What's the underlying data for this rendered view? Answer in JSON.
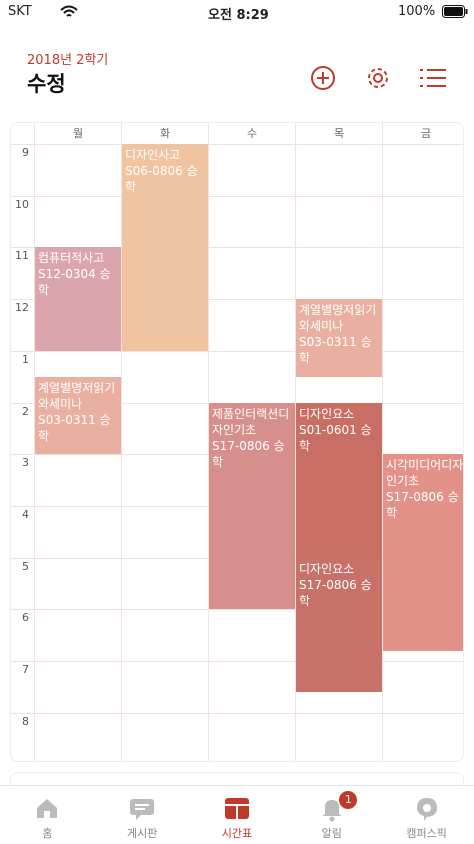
{
  "status_bar": {
    "carrier": "SKT",
    "time": "오전 8:29",
    "battery": "100%"
  },
  "header": {
    "semester": "2018년 2학기",
    "title": "수정"
  },
  "timetable": {
    "days": [
      "월",
      "화",
      "수",
      "목",
      "금"
    ],
    "hours": [
      {
        "value": 9,
        "label": "9"
      },
      {
        "value": 10,
        "label": "10"
      },
      {
        "value": 11,
        "label": "11"
      },
      {
        "value": 12,
        "label": "12"
      },
      {
        "value": 13,
        "label": "1"
      },
      {
        "value": 14,
        "label": "2"
      },
      {
        "value": 15,
        "label": "3"
      },
      {
        "value": 16,
        "label": "4"
      },
      {
        "value": 17,
        "label": "5"
      },
      {
        "value": 18,
        "label": "6"
      },
      {
        "value": 19,
        "label": "7"
      },
      {
        "value": 20,
        "label": "8"
      }
    ],
    "courses": [
      {
        "name": "디자인사고",
        "room": "S06-0806 승학",
        "day": 1,
        "start": 9,
        "end": 13,
        "color": "#f0c4a0"
      },
      {
        "name": "컴퓨터적사고",
        "room": "S12-0304 승학",
        "day": 0,
        "start": 11,
        "end": 13,
        "color": "#dba5ae"
      },
      {
        "name": "계열별명저읽기와세미나",
        "room": "S03-0311 승학",
        "day": 3,
        "start": 12,
        "end": 13.5,
        "color": "#e9b0a2"
      },
      {
        "name": "계열별명저읽기와세미나",
        "room": "S03-0311 승학",
        "day": 0,
        "start": 13.5,
        "end": 15,
        "color": "#e9b0a2"
      },
      {
        "name": "제품인터랙션디자인기초",
        "room": "S17-0806 승학",
        "day": 2,
        "start": 14,
        "end": 18,
        "color": "#d78f8c"
      },
      {
        "name": "디자인요소",
        "room": "S01-0601 승학",
        "day": 3,
        "start": 14,
        "end": 17,
        "color": "#c96e65"
      },
      {
        "name": "디자인요소",
        "room": "S17-0806 승학",
        "day": 3,
        "start": 17,
        "end": 19.6,
        "color": "#c77168"
      },
      {
        "name": "시각미디어디자인기초",
        "room": "S17-0806 승학",
        "day": 4,
        "start": 15,
        "end": 18.8,
        "color": "#e3928a"
      }
    ]
  },
  "tabs": [
    {
      "label": "홈"
    },
    {
      "label": "게시판"
    },
    {
      "label": "시간표"
    },
    {
      "label": "알림",
      "badge": "1"
    },
    {
      "label": "캠퍼스픽"
    }
  ]
}
